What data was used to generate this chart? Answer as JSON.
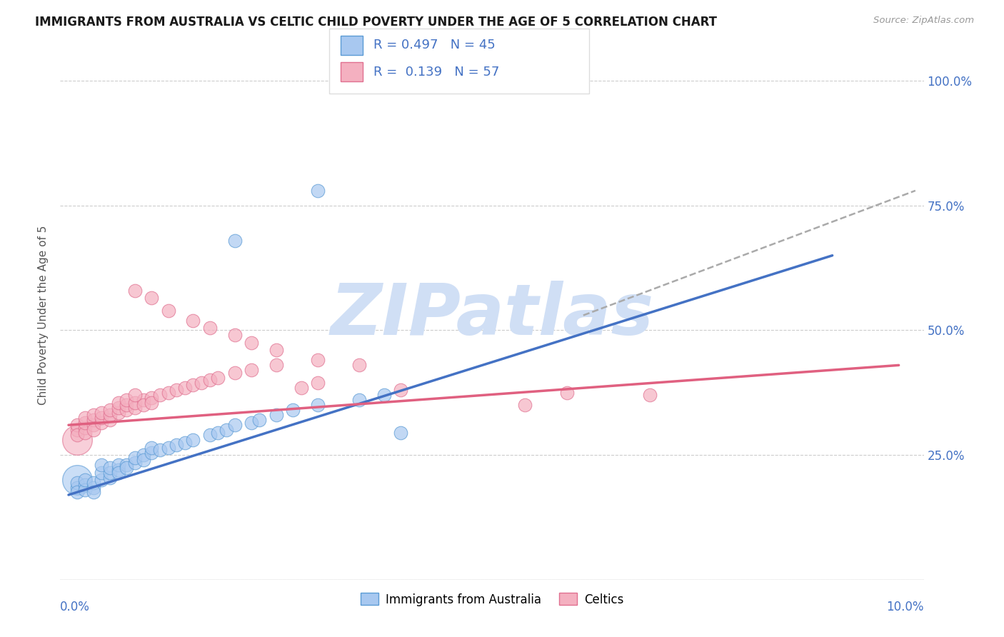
{
  "title": "IMMIGRANTS FROM AUSTRALIA VS CELTIC CHILD POVERTY UNDER THE AGE OF 5 CORRELATION CHART",
  "source": "Source: ZipAtlas.com",
  "ylabel": "Child Poverty Under the Age of 5",
  "legend_label1": "Immigrants from Australia",
  "legend_label2": "Celtics",
  "r1": 0.497,
  "n1": 45,
  "r2": 0.139,
  "n2": 57,
  "color_blue_fill": "#A8C8F0",
  "color_blue_edge": "#5B9BD5",
  "color_pink_fill": "#F4B0C0",
  "color_pink_edge": "#E07090",
  "color_blue_line": "#4472C4",
  "color_pink_line": "#E06080",
  "color_dashed": "#AAAAAA",
  "color_text_axis": "#4472C4",
  "watermark_text": "ZIPatlas",
  "watermark_color": "#D0DFF5",
  "blue_dots": [
    [
      0.001,
      0.185
    ],
    [
      0.001,
      0.195
    ],
    [
      0.001,
      0.175
    ],
    [
      0.002,
      0.19
    ],
    [
      0.002,
      0.18
    ],
    [
      0.002,
      0.2
    ],
    [
      0.003,
      0.185
    ],
    [
      0.003,
      0.195
    ],
    [
      0.003,
      0.175
    ],
    [
      0.004,
      0.2
    ],
    [
      0.004,
      0.215
    ],
    [
      0.004,
      0.23
    ],
    [
      0.005,
      0.205
    ],
    [
      0.005,
      0.215
    ],
    [
      0.005,
      0.225
    ],
    [
      0.006,
      0.22
    ],
    [
      0.006,
      0.23
    ],
    [
      0.006,
      0.215
    ],
    [
      0.007,
      0.23
    ],
    [
      0.007,
      0.225
    ],
    [
      0.008,
      0.235
    ],
    [
      0.008,
      0.245
    ],
    [
      0.009,
      0.25
    ],
    [
      0.009,
      0.24
    ],
    [
      0.01,
      0.255
    ],
    [
      0.01,
      0.265
    ],
    [
      0.011,
      0.26
    ],
    [
      0.012,
      0.265
    ],
    [
      0.013,
      0.27
    ],
    [
      0.014,
      0.275
    ],
    [
      0.015,
      0.28
    ],
    [
      0.017,
      0.29
    ],
    [
      0.018,
      0.295
    ],
    [
      0.019,
      0.3
    ],
    [
      0.02,
      0.31
    ],
    [
      0.022,
      0.315
    ],
    [
      0.023,
      0.32
    ],
    [
      0.025,
      0.33
    ],
    [
      0.027,
      0.34
    ],
    [
      0.03,
      0.35
    ],
    [
      0.035,
      0.36
    ],
    [
      0.038,
      0.37
    ],
    [
      0.04,
      0.295
    ],
    [
      0.02,
      0.68
    ],
    [
      0.03,
      0.78
    ]
  ],
  "pink_dots": [
    [
      0.001,
      0.3
    ],
    [
      0.001,
      0.31
    ],
    [
      0.001,
      0.29
    ],
    [
      0.002,
      0.305
    ],
    [
      0.002,
      0.295
    ],
    [
      0.002,
      0.315
    ],
    [
      0.002,
      0.325
    ],
    [
      0.003,
      0.31
    ],
    [
      0.003,
      0.32
    ],
    [
      0.003,
      0.33
    ],
    [
      0.003,
      0.3
    ],
    [
      0.004,
      0.315
    ],
    [
      0.004,
      0.325
    ],
    [
      0.004,
      0.335
    ],
    [
      0.005,
      0.32
    ],
    [
      0.005,
      0.33
    ],
    [
      0.005,
      0.34
    ],
    [
      0.006,
      0.335
    ],
    [
      0.006,
      0.345
    ],
    [
      0.006,
      0.355
    ],
    [
      0.007,
      0.34
    ],
    [
      0.007,
      0.35
    ],
    [
      0.007,
      0.36
    ],
    [
      0.008,
      0.345
    ],
    [
      0.008,
      0.355
    ],
    [
      0.009,
      0.36
    ],
    [
      0.009,
      0.35
    ],
    [
      0.01,
      0.365
    ],
    [
      0.01,
      0.355
    ],
    [
      0.011,
      0.37
    ],
    [
      0.012,
      0.375
    ],
    [
      0.013,
      0.38
    ],
    [
      0.014,
      0.385
    ],
    [
      0.015,
      0.39
    ],
    [
      0.016,
      0.395
    ],
    [
      0.017,
      0.4
    ],
    [
      0.018,
      0.405
    ],
    [
      0.02,
      0.415
    ],
    [
      0.022,
      0.42
    ],
    [
      0.025,
      0.43
    ],
    [
      0.028,
      0.385
    ],
    [
      0.03,
      0.395
    ],
    [
      0.008,
      0.58
    ],
    [
      0.01,
      0.565
    ],
    [
      0.012,
      0.54
    ],
    [
      0.015,
      0.52
    ],
    [
      0.017,
      0.505
    ],
    [
      0.02,
      0.49
    ],
    [
      0.022,
      0.475
    ],
    [
      0.025,
      0.46
    ],
    [
      0.03,
      0.44
    ],
    [
      0.035,
      0.43
    ],
    [
      0.008,
      0.37
    ],
    [
      0.06,
      0.375
    ],
    [
      0.04,
      0.38
    ],
    [
      0.055,
      0.35
    ],
    [
      0.07,
      0.37
    ]
  ],
  "blue_line_x": [
    0.0,
    0.092
  ],
  "blue_line_y": [
    0.17,
    0.65
  ],
  "pink_line_x": [
    0.0,
    0.1
  ],
  "pink_line_y": [
    0.31,
    0.43
  ],
  "dashed_line_x": [
    0.062,
    0.102
  ],
  "dashed_line_y": [
    0.53,
    0.78
  ],
  "xlim": [
    -0.001,
    0.103
  ],
  "ylim": [
    0.0,
    1.06
  ],
  "ytick_vals": [
    0.0,
    0.25,
    0.5,
    0.75,
    1.0
  ],
  "ytick_labels_right": [
    "",
    "25.0%",
    "50.0%",
    "75.0%",
    "100.0%"
  ],
  "background_color": "#FFFFFF"
}
